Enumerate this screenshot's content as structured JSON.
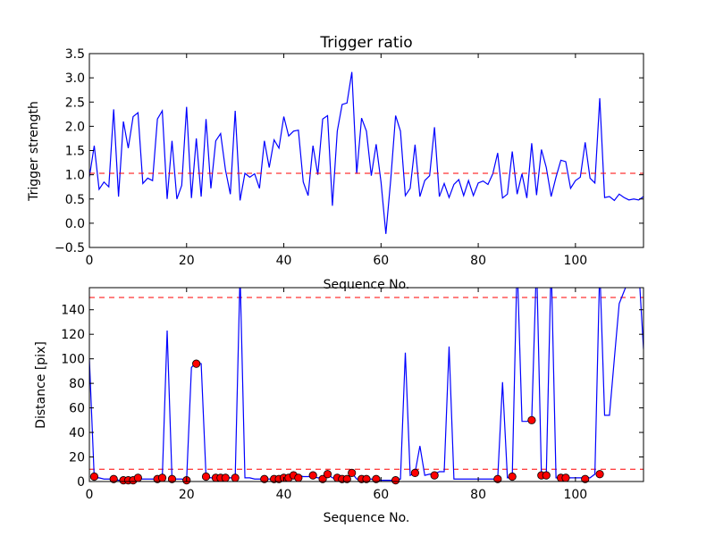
{
  "chart_data": [
    {
      "type": "line",
      "title": "Trigger ratio",
      "xlabel": "Sequence No.",
      "ylabel": "Trigger strength",
      "xlim": [
        0,
        114
      ],
      "ylim": [
        -0.5,
        3.5
      ],
      "xticks": [
        0,
        20,
        40,
        60,
        80,
        100
      ],
      "yticks": [
        -0.5,
        0.0,
        0.5,
        1.0,
        1.5,
        2.0,
        2.5,
        3.0,
        3.5
      ],
      "ytick_labels": [
        "−0.5",
        "0.0",
        "0.5",
        "1.0",
        "1.5",
        "2.0",
        "2.5",
        "3.0",
        "3.5"
      ],
      "grid": false,
      "series": [
        {
          "color": "#0000ff",
          "style": "solid",
          "values": [
            0.95,
            1.6,
            0.7,
            0.85,
            0.75,
            2.35,
            0.55,
            2.1,
            1.55,
            2.2,
            2.28,
            0.82,
            0.93,
            0.88,
            2.15,
            2.32,
            0.5,
            1.7,
            0.5,
            0.78,
            2.4,
            0.52,
            1.75,
            0.55,
            2.15,
            0.72,
            1.7,
            1.85,
            1.1,
            0.6,
            2.32,
            0.47,
            1.03,
            0.95,
            1.02,
            0.72,
            1.7,
            1.15,
            1.72,
            1.55,
            2.2,
            1.8,
            1.9,
            1.92,
            0.85,
            0.57,
            1.6,
            1.0,
            2.15,
            2.22,
            0.36,
            1.9,
            2.45,
            2.48,
            3.12,
            1.02,
            2.17,
            1.9,
            0.98,
            1.63,
            0.85,
            -0.22,
            0.9,
            2.22,
            1.9,
            0.57,
            0.72,
            1.62,
            0.55,
            0.88,
            0.98,
            1.98,
            0.55,
            0.82,
            0.53,
            0.8,
            0.9,
            0.57,
            0.88,
            0.57,
            0.83,
            0.87,
            0.8,
            1.02,
            1.45,
            0.52,
            0.6,
            1.48,
            0.6,
            1.02,
            0.52,
            1.65,
            0.58,
            1.52,
            1.15,
            0.55,
            0.95,
            1.3,
            1.27,
            0.72,
            0.88,
            0.95,
            1.67,
            0.93,
            0.83,
            2.58,
            0.53,
            0.55,
            0.47,
            0.6,
            0.53,
            0.48,
            0.5,
            0.48,
            0.55
          ]
        },
        {
          "color": "#ff0000",
          "style": "dashed",
          "values": [
            1.03,
            1.03
          ]
        }
      ]
    },
    {
      "type": "line",
      "title": "",
      "xlabel": "Sequence No.",
      "ylabel": "Distance [pix]",
      "xlim": [
        0,
        114
      ],
      "ylim": [
        0,
        158
      ],
      "xticks": [
        0,
        20,
        40,
        60,
        80,
        100
      ],
      "yticks": [
        0,
        20,
        40,
        60,
        80,
        100,
        120,
        140
      ],
      "grid": false,
      "thresholds": [
        150,
        10
      ],
      "series": [
        {
          "color": "#0000ff",
          "style": "solid",
          "values": [
            100,
            3,
            3,
            2,
            2,
            2,
            1,
            1,
            1,
            2,
            2,
            2,
            2,
            2,
            2,
            3,
            123,
            2,
            2,
            2,
            1,
            93,
            97,
            96,
            4,
            3,
            3,
            3,
            3,
            3,
            3,
            170,
            3,
            3,
            2,
            2,
            2,
            2,
            2,
            2,
            2,
            3,
            5,
            5,
            4,
            4,
            4,
            3,
            3,
            6,
            3,
            2,
            2,
            2,
            7,
            2,
            2,
            2,
            2,
            1,
            1,
            1,
            1,
            1,
            2,
            105,
            5,
            7,
            29,
            5,
            6,
            6,
            8,
            8,
            110,
            2,
            2,
            2,
            2,
            2,
            2,
            2,
            2,
            2,
            2,
            81,
            3,
            4,
            180,
            49,
            49,
            50,
            180,
            5,
            5,
            180,
            3,
            3,
            3,
            3,
            3,
            3,
            3,
            3,
            6,
            175,
            54,
            54,
            100,
            145,
            155,
            165,
            170,
            175,
            108
          ]
        }
      ],
      "markers": {
        "color": "#ff0000",
        "x": [
          1,
          5,
          7,
          8,
          9,
          10,
          14,
          15,
          17,
          20,
          22,
          24,
          26,
          27,
          28,
          30,
          36,
          38,
          39,
          40,
          41,
          42,
          43,
          46,
          48,
          49,
          51,
          52,
          53,
          54,
          56,
          57,
          59,
          63,
          67,
          71,
          84,
          87,
          91,
          93,
          94,
          97,
          98,
          102,
          105
        ],
        "y": [
          4,
          2,
          1,
          1,
          1,
          3,
          2,
          3,
          2,
          1,
          96,
          4,
          3,
          3,
          3,
          3,
          2,
          2,
          2,
          3,
          3,
          5,
          3,
          5,
          2,
          6,
          3,
          2,
          2,
          7,
          2,
          2,
          2,
          1,
          7,
          5,
          2,
          4,
          50,
          5,
          5,
          3,
          3,
          2,
          6
        ]
      }
    }
  ]
}
